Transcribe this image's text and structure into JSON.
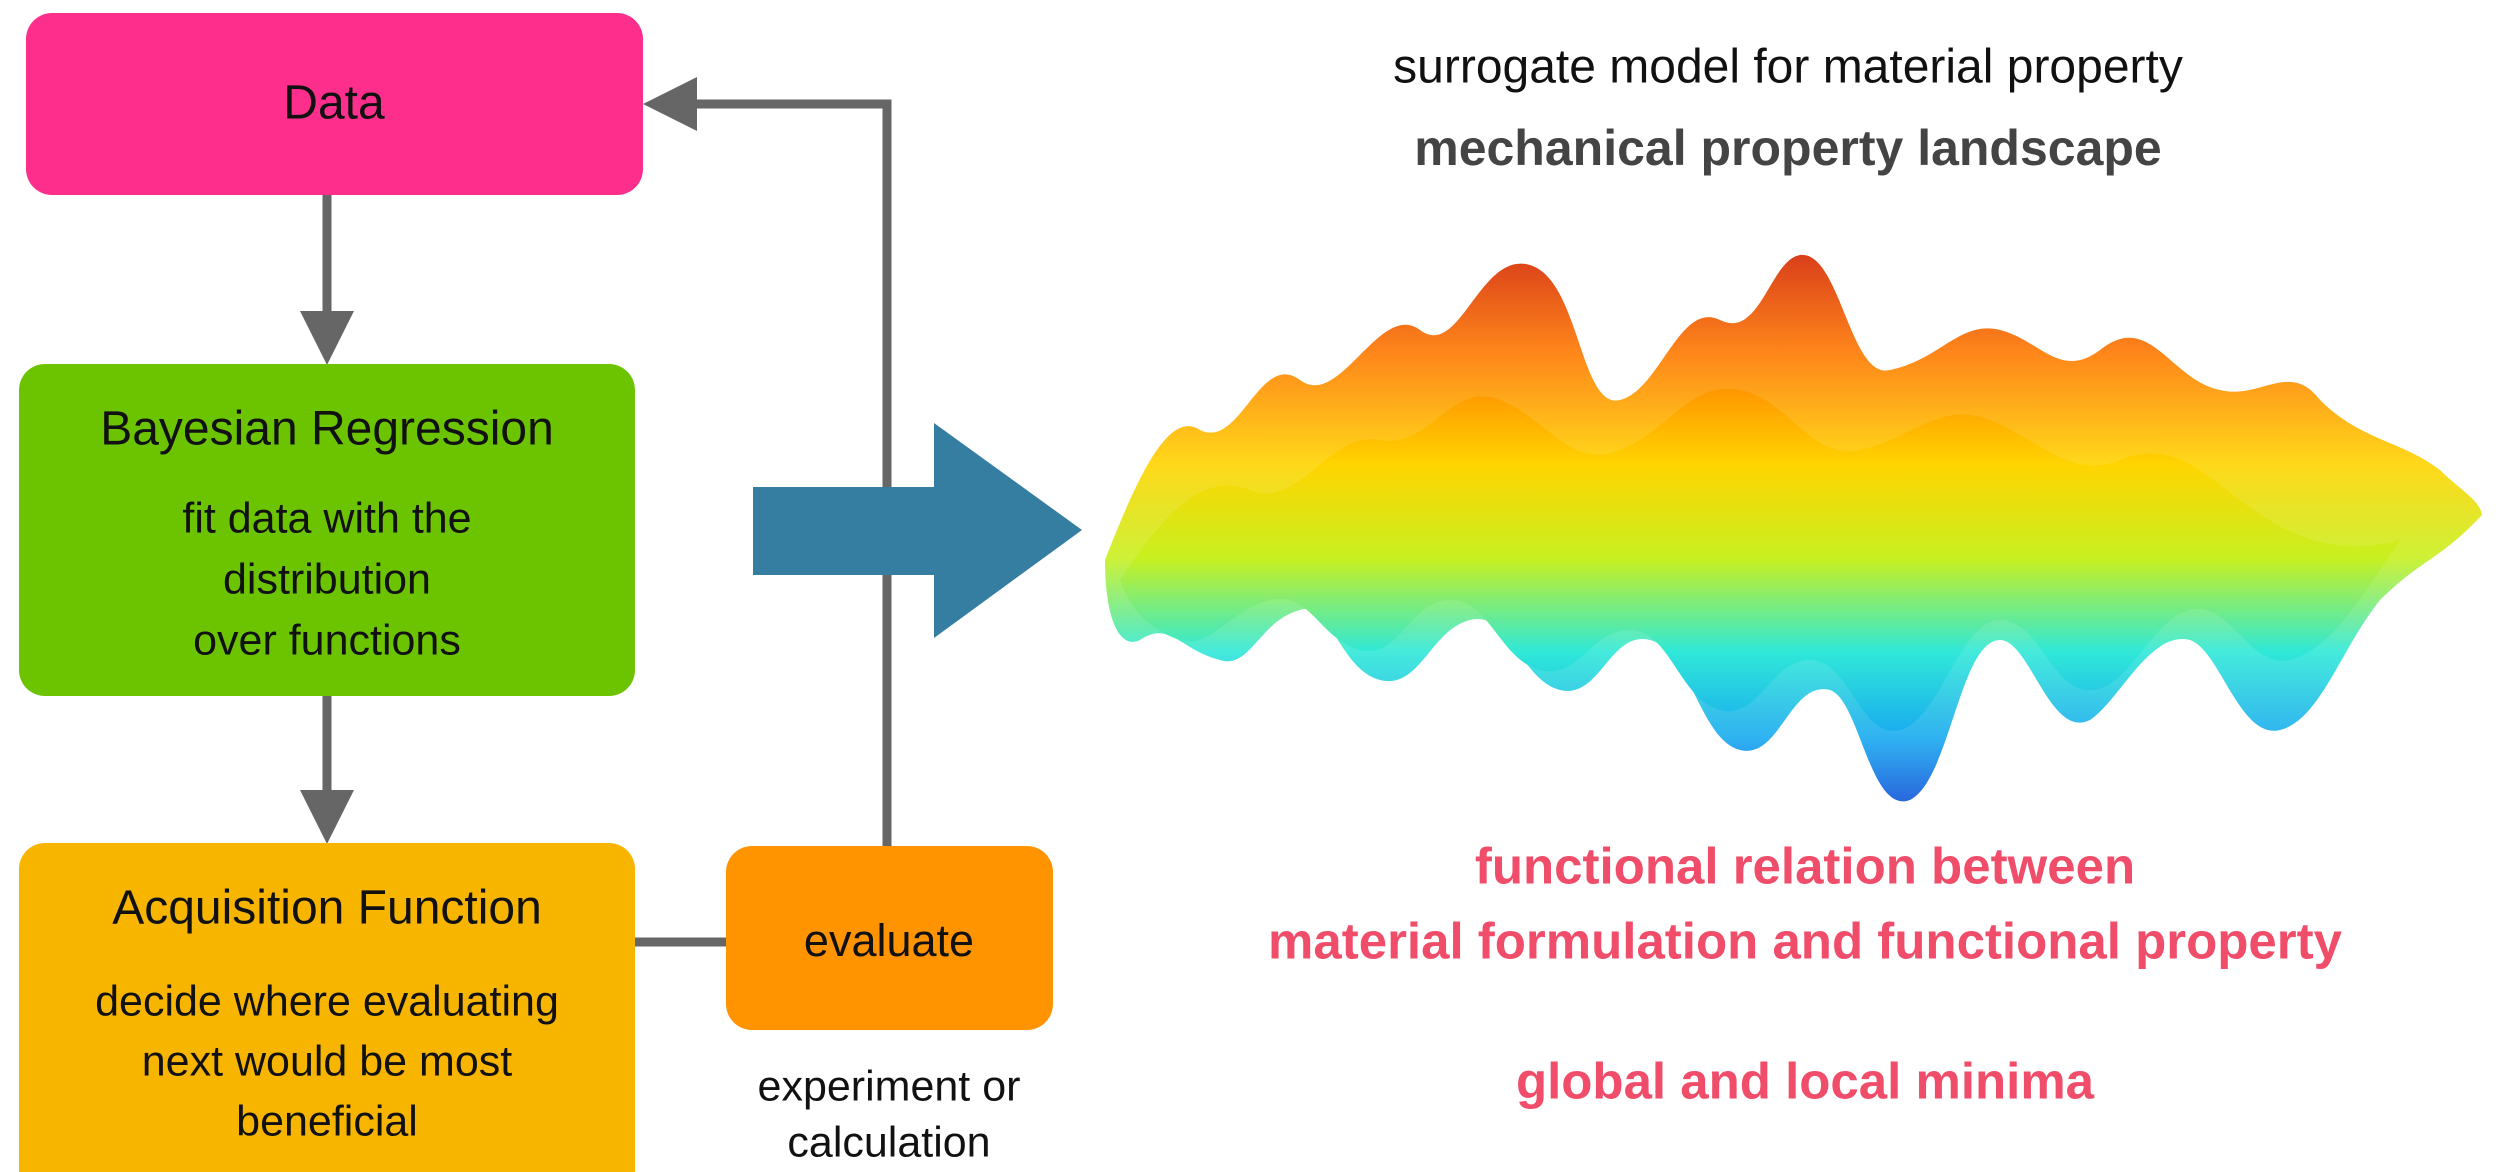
{
  "nodes": [
    {
      "label": "Data"
    },
    {
      "label": "Bayesian Regression",
      "detail": [
        "fit data with the",
        "distribution",
        "over functions"
      ]
    },
    {
      "label": "Acquisition Function",
      "detail": [
        "decide where evaluating",
        "next would be most",
        "beneficial"
      ]
    },
    {
      "label": "evaluate",
      "note": [
        "experiment or",
        "calculation"
      ]
    }
  ],
  "landscape": {
    "title": "surrogate model for material property",
    "subtitle": "mechanical property landscape",
    "notes": [
      "functional relation between",
      "material formulation and functional property",
      "global and local minima"
    ]
  }
}
